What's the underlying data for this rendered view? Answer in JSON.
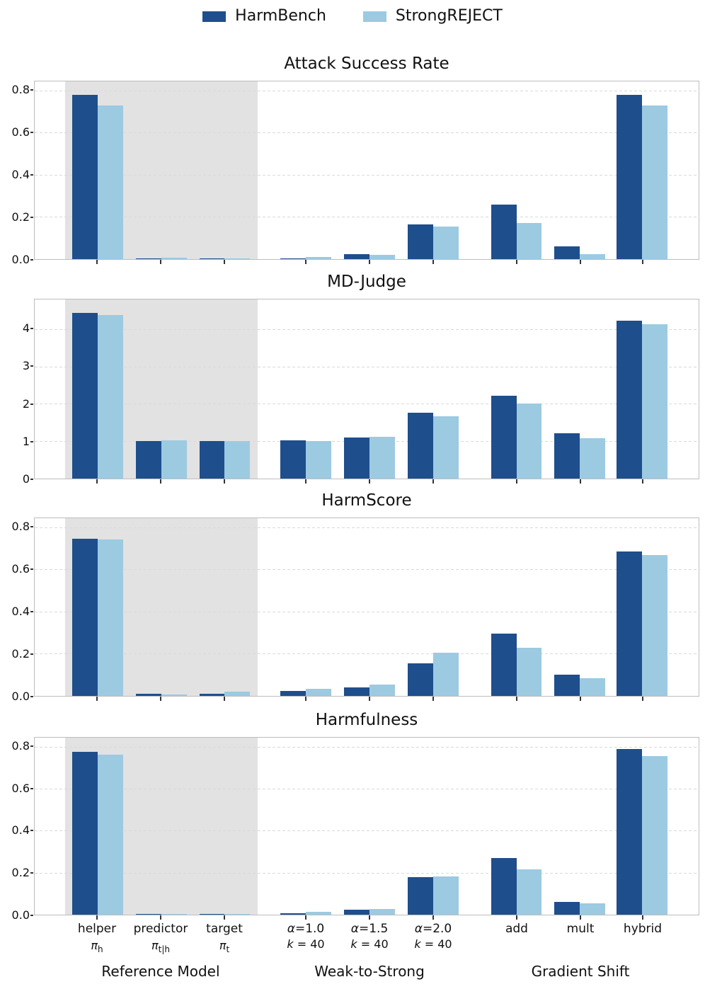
{
  "legend": {
    "items": [
      {
        "label": "HarmBench",
        "color": "#1f4e8c"
      },
      {
        "label": "StrongREJECT",
        "color": "#9ccae1"
      }
    ]
  },
  "colors": {
    "harmbench": "#1f4e8c",
    "strongreject": "#9ccae1",
    "highlight_band": "#e2e2e2",
    "gridline": "#d9d9d9",
    "axis_spine": "#bdbdbd"
  },
  "x_axis": {
    "highlight_band": {
      "start_pct": 4.57,
      "width_pct": 29.05
    },
    "categories": [
      {
        "id": "helper",
        "label": "helper",
        "sub_pi": "π",
        "sub_script": "h",
        "center_pct": 9.47
      },
      {
        "id": "predictor",
        "label": "predictor",
        "sub_pi": "π",
        "sub_script": "t|h",
        "center_pct": 19.04
      },
      {
        "id": "target",
        "label": "target",
        "sub_pi": "π",
        "sub_script": "t",
        "center_pct": 28.62
      },
      {
        "id": "alpha-1-0",
        "alpha": "α",
        "label": "=1.0",
        "sub_k": "k",
        "sub_rest": " = 40",
        "center_pct": 40.85
      },
      {
        "id": "alpha-1-5",
        "alpha": "α",
        "label": "=1.5",
        "sub_k": "k",
        "sub_rest": " = 40",
        "center_pct": 50.43
      },
      {
        "id": "alpha-2-0",
        "alpha": "α",
        "label": "=2.0",
        "sub_k": "k",
        "sub_rest": " = 40",
        "center_pct": 60.0
      },
      {
        "id": "add",
        "label": "add",
        "center_pct": 72.55
      },
      {
        "id": "mult",
        "label": "mult",
        "center_pct": 82.13
      },
      {
        "id": "hybrid",
        "label": "hybrid",
        "center_pct": 91.49
      }
    ],
    "groups": [
      {
        "label": "Reference Model",
        "center_pct": 19.04
      },
      {
        "label": "Weak-to-Strong",
        "center_pct": 50.43
      },
      {
        "label": "Gradient Shift",
        "center_pct": 82.13
      }
    ]
  },
  "chart_data": [
    {
      "type": "bar",
      "title": "Attack Success Rate",
      "ylim": [
        0,
        0.843
      ],
      "ytick_values": [
        0,
        0.2,
        0.4,
        0.6,
        0.8
      ],
      "ytick_labels": [
        "0.0",
        "0.2",
        "0.4",
        "0.6",
        "0.8"
      ],
      "series": [
        {
          "name": "HarmBench",
          "color": "#1f4e8c",
          "values": [
            0.78,
            0.002,
            0.002,
            0.005,
            0.025,
            0.165,
            0.26,
            0.06,
            0.78
          ]
        },
        {
          "name": "StrongREJECT",
          "color": "#9ccae1",
          "values": [
            0.73,
            0.008,
            0.005,
            0.01,
            0.02,
            0.155,
            0.17,
            0.025,
            0.73
          ]
        }
      ]
    },
    {
      "type": "bar",
      "title": "MD-Judge",
      "ylim": [
        0,
        4.79
      ],
      "ytick_values": [
        0,
        1,
        2,
        3,
        4
      ],
      "ytick_labels": [
        "0",
        "1",
        "2",
        "3",
        "4"
      ],
      "series": [
        {
          "name": "HarmBench",
          "color": "#1f4e8c",
          "values": [
            4.43,
            1.01,
            1.01,
            1.02,
            1.09,
            1.76,
            2.22,
            1.21,
            4.22
          ]
        },
        {
          "name": "StrongREJECT",
          "color": "#9ccae1",
          "values": [
            4.37,
            1.02,
            1.0,
            1.0,
            1.12,
            1.67,
            2.0,
            1.08,
            4.13
          ]
        }
      ]
    },
    {
      "type": "bar",
      "title": "HarmScore",
      "ylim": [
        0,
        0.843
      ],
      "ytick_values": [
        0,
        0.2,
        0.4,
        0.6,
        0.8
      ],
      "ytick_labels": [
        "0.0",
        "0.2",
        "0.4",
        "0.6",
        "0.8"
      ],
      "series": [
        {
          "name": "HarmBench",
          "color": "#1f4e8c",
          "values": [
            0.745,
            0.01,
            0.01,
            0.022,
            0.04,
            0.155,
            0.295,
            0.1,
            0.685
          ]
        },
        {
          "name": "StrongREJECT",
          "color": "#9ccae1",
          "values": [
            0.742,
            0.007,
            0.02,
            0.032,
            0.055,
            0.205,
            0.228,
            0.085,
            0.667
          ]
        }
      ]
    },
    {
      "type": "bar",
      "title": "Harmfulness",
      "ylim": [
        0,
        0.843
      ],
      "ytick_values": [
        0,
        0.2,
        0.4,
        0.6,
        0.8
      ],
      "ytick_labels": [
        "0.0",
        "0.2",
        "0.4",
        "0.6",
        "0.8"
      ],
      "series": [
        {
          "name": "HarmBench",
          "color": "#1f4e8c",
          "values": [
            0.775,
            0.002,
            0.002,
            0.006,
            0.025,
            0.18,
            0.27,
            0.062,
            0.79
          ]
        },
        {
          "name": "StrongREJECT",
          "color": "#9ccae1",
          "values": [
            0.763,
            0.005,
            0.002,
            0.013,
            0.028,
            0.183,
            0.216,
            0.054,
            0.755
          ]
        }
      ]
    }
  ]
}
